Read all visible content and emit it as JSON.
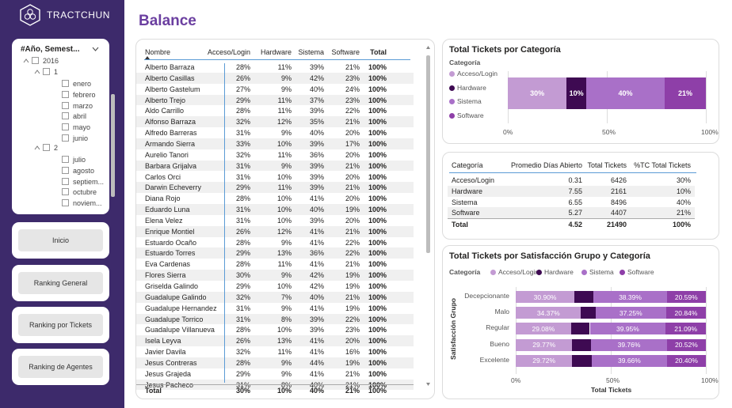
{
  "brand": {
    "name": "TRACTCHUN",
    "logo_icon": "hexagon-flower-logo"
  },
  "page_title": "Balance",
  "slicer": {
    "title": "#Año, Semest...",
    "year": "2016",
    "sem1": "1",
    "sem1_months": [
      "enero",
      "febrero",
      "marzo",
      "abril",
      "mayo",
      "junio"
    ],
    "sem2": "2",
    "sem2_months": [
      "julio",
      "agosto",
      "septiem...",
      "octubre",
      "noviem..."
    ]
  },
  "nav": [
    {
      "label": "Inicio"
    },
    {
      "label": "Ranking General"
    },
    {
      "label": "Ranking por Tickets"
    },
    {
      "label": "Ranking de Agentes"
    }
  ],
  "table": {
    "headers": [
      "Nombre",
      "Acceso/Login",
      "Hardware",
      "Sistema",
      "Software",
      "Total"
    ],
    "rows": [
      [
        "Alberto Barraza",
        "28%",
        "11%",
        "39%",
        "21%",
        "100%"
      ],
      [
        "Alberto Casillas",
        "26%",
        "9%",
        "42%",
        "23%",
        "100%"
      ],
      [
        "Alberto Gastelum",
        "27%",
        "9%",
        "40%",
        "24%",
        "100%"
      ],
      [
        "Alberto Trejo",
        "29%",
        "11%",
        "37%",
        "23%",
        "100%"
      ],
      [
        "Aldo Carrillo",
        "28%",
        "11%",
        "39%",
        "22%",
        "100%"
      ],
      [
        "Alfonso Barraza",
        "32%",
        "12%",
        "35%",
        "21%",
        "100%"
      ],
      [
        "Alfredo Barreras",
        "31%",
        "9%",
        "40%",
        "20%",
        "100%"
      ],
      [
        "Armando Sierra",
        "33%",
        "10%",
        "39%",
        "17%",
        "100%"
      ],
      [
        "Aurelio Tanori",
        "32%",
        "11%",
        "36%",
        "20%",
        "100%"
      ],
      [
        "Barbara Grijalva",
        "31%",
        "9%",
        "39%",
        "21%",
        "100%"
      ],
      [
        "Carlos Orci",
        "31%",
        "10%",
        "39%",
        "20%",
        "100%"
      ],
      [
        "Darwin Echeverry",
        "29%",
        "11%",
        "39%",
        "21%",
        "100%"
      ],
      [
        "Diana Rojo",
        "28%",
        "10%",
        "41%",
        "20%",
        "100%"
      ],
      [
        "Eduardo Luna",
        "31%",
        "10%",
        "40%",
        "19%",
        "100%"
      ],
      [
        "Elena Velez",
        "31%",
        "10%",
        "39%",
        "20%",
        "100%"
      ],
      [
        "Enrique Montiel",
        "26%",
        "12%",
        "41%",
        "21%",
        "100%"
      ],
      [
        "Estuardo Ocaño",
        "28%",
        "9%",
        "41%",
        "22%",
        "100%"
      ],
      [
        "Estuardo Torres",
        "29%",
        "13%",
        "36%",
        "22%",
        "100%"
      ],
      [
        "Eva Cardenas",
        "28%",
        "11%",
        "41%",
        "21%",
        "100%"
      ],
      [
        "Flores Sierra",
        "30%",
        "9%",
        "42%",
        "19%",
        "100%"
      ],
      [
        "Griselda Galindo",
        "29%",
        "10%",
        "42%",
        "19%",
        "100%"
      ],
      [
        "Guadalupe Galindo",
        "32%",
        "7%",
        "40%",
        "21%",
        "100%"
      ],
      [
        "Guadalupe Hernandez",
        "31%",
        "9%",
        "41%",
        "19%",
        "100%"
      ],
      [
        "Guadalupe Torrico",
        "31%",
        "8%",
        "39%",
        "22%",
        "100%"
      ],
      [
        "Guadalupe Villanueva",
        "28%",
        "10%",
        "39%",
        "23%",
        "100%"
      ],
      [
        "Isela Leyva",
        "26%",
        "13%",
        "41%",
        "20%",
        "100%"
      ],
      [
        "Javier Davila",
        "32%",
        "11%",
        "41%",
        "16%",
        "100%"
      ],
      [
        "Jesus Contreras",
        "28%",
        "9%",
        "44%",
        "19%",
        "100%"
      ],
      [
        "Jesus Grajeda",
        "29%",
        "9%",
        "41%",
        "21%",
        "100%"
      ],
      [
        "Jesus Pacheco",
        "31%",
        "8%",
        "40%",
        "21%",
        "100%"
      ]
    ],
    "total": [
      "Total",
      "30%",
      "10%",
      "40%",
      "21%",
      "100%"
    ]
  },
  "cat_chart": {
    "title": "Total Tickets por Categoría",
    "legend_title": "Categoría",
    "legend": [
      "Acceso/Login",
      "Hardware",
      "Sistema",
      "Software"
    ],
    "labels": [
      "30%",
      "10%",
      "40%",
      "21%"
    ],
    "ticks": [
      "0%",
      "50%",
      "100%"
    ]
  },
  "summary": {
    "headers": [
      "Categoría",
      "Promedio Días Abierto",
      "Total Tickets",
      "%TC Total Tickets"
    ],
    "rows": [
      [
        "Acceso/Login",
        "0.31",
        "6426",
        "30%"
      ],
      [
        "Hardware",
        "7.55",
        "2161",
        "10%"
      ],
      [
        "Sistema",
        "6.55",
        "8496",
        "40%"
      ],
      [
        "Software",
        "5.27",
        "4407",
        "21%"
      ]
    ],
    "total": [
      "Total",
      "4.52",
      "21490",
      "100%"
    ]
  },
  "sat_chart": {
    "title": "Total Tickets por Satisfacción Grupo y Categoría",
    "legend_title": "Categoría",
    "legend": [
      "Acceso/Login",
      "Hardware",
      "Sistema",
      "Software"
    ],
    "ylabel": "Satisfacción Grupo",
    "xlabel": "Total Tickets",
    "ticks": [
      "0%",
      "50%",
      "100%"
    ],
    "groups": [
      "Decepcionante",
      "Malo",
      "Regular",
      "Bueno",
      "Excelente"
    ],
    "acc_labels": [
      "30.90%",
      "34.37%",
      "29.08%",
      "29.77%",
      "29.72%"
    ],
    "sis_labels": [
      "38.39%",
      "37.25%",
      "39.95%",
      "39.76%",
      "39.66%"
    ],
    "sof_labels": [
      "20.59%",
      "20.84%",
      "21.09%",
      "20.52%",
      "20.40%"
    ]
  },
  "chart_data": [
    {
      "type": "bar",
      "title": "Total Tickets por Categoría",
      "categories": [
        "Acceso/Login",
        "Hardware",
        "Sistema",
        "Software"
      ],
      "values": [
        30,
        10,
        40,
        21
      ],
      "xlim": [
        0,
        100
      ],
      "colors": [
        "#c39bd3",
        "#3e0a52",
        "#a970c8",
        "#8e3fa8"
      ]
    },
    {
      "type": "bar",
      "title": "Total Tickets por Satisfacción Grupo y Categoría",
      "categories": [
        "Decepcionante",
        "Malo",
        "Regular",
        "Bueno",
        "Excelente"
      ],
      "xlabel": "Total Tickets",
      "ylabel": "Satisfacción Grupo",
      "xlim": [
        0,
        100
      ],
      "series": [
        {
          "name": "Acceso/Login",
          "values": [
            30.9,
            34.37,
            29.08,
            29.77,
            29.72
          ]
        },
        {
          "name": "Hardware",
          "values": [
            10.12,
            7.54,
            9.88,
            9.95,
            10.22
          ]
        },
        {
          "name": "Sistema",
          "values": [
            38.39,
            37.25,
            39.95,
            39.76,
            39.66
          ]
        },
        {
          "name": "Software",
          "values": [
            20.59,
            20.84,
            21.09,
            20.52,
            20.4
          ]
        }
      ]
    }
  ],
  "colors": {
    "sidebar": "#3d2a6b",
    "title": "#6b3fa0",
    "acceso": "#c39bd3",
    "hardware": "#3e0a52",
    "sistema": "#a970c8",
    "software": "#8e3fa8"
  }
}
